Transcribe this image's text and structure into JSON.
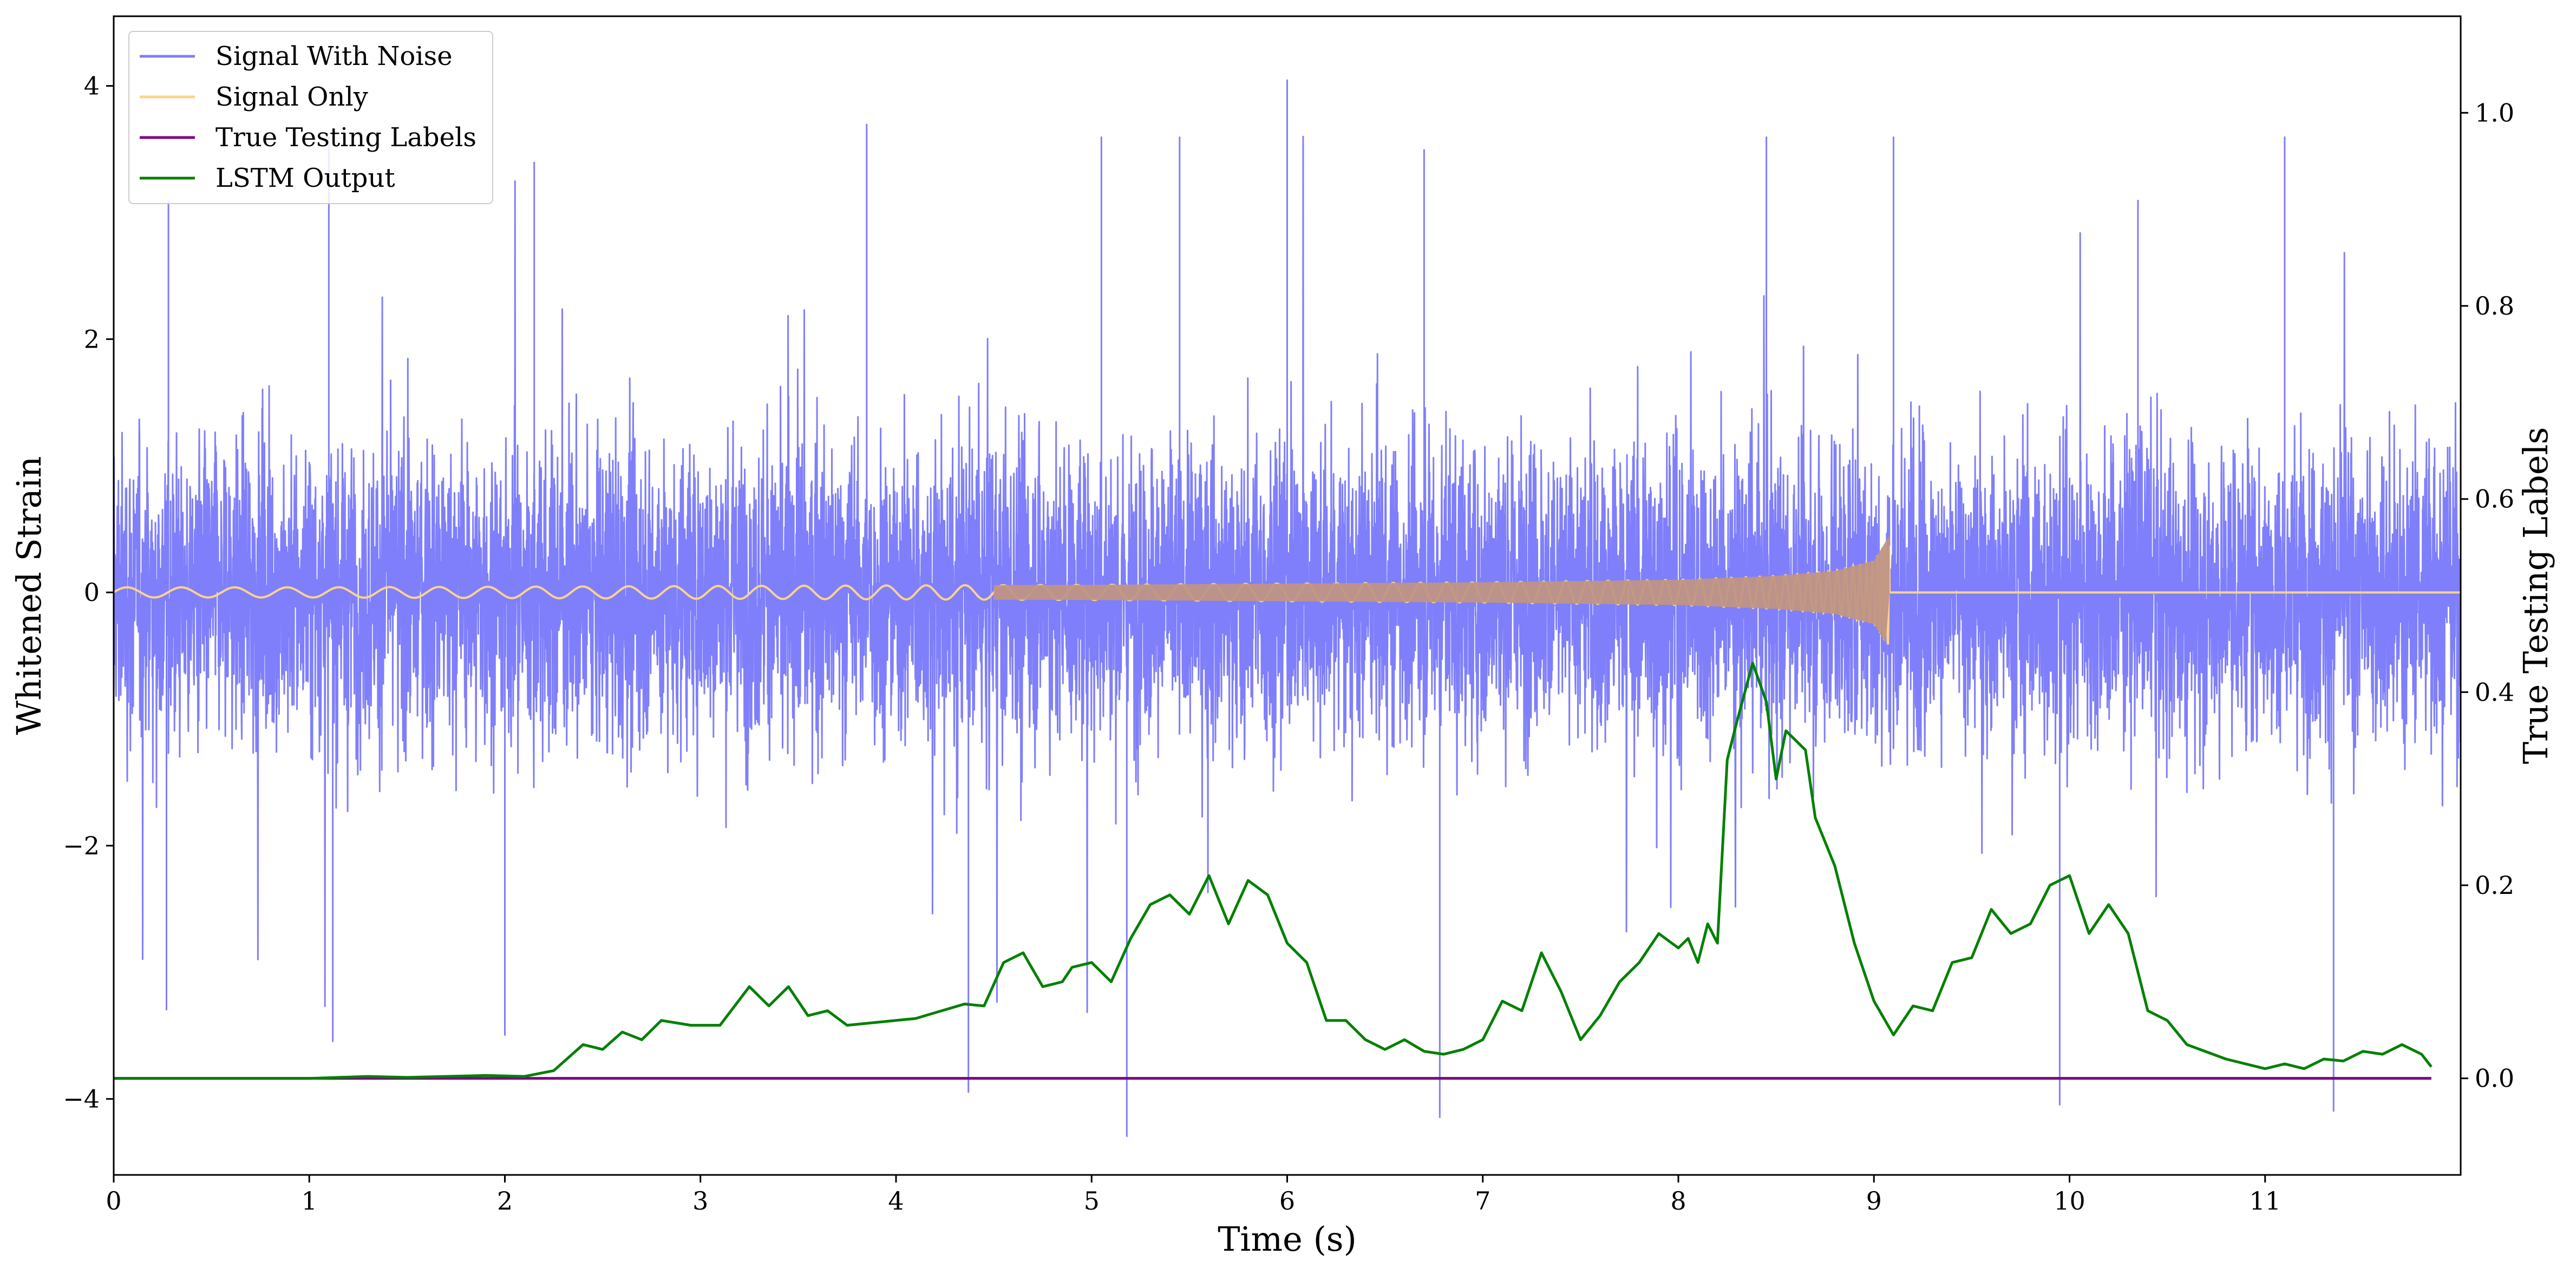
{
  "chart_data": {
    "type": "line",
    "title": "",
    "xlabel": "Time (s)",
    "ylabel": "Whitened Strain",
    "y2label": "True Testing Labels",
    "xlim": [
      0,
      12
    ],
    "ylim": [
      -4.6,
      4.55
    ],
    "y2lim": [
      -0.1,
      1.1
    ],
    "x_ticks": [
      0,
      1,
      2,
      3,
      4,
      5,
      6,
      7,
      8,
      9,
      10,
      11
    ],
    "x_tick_labels": [
      "0",
      "1",
      "2",
      "3",
      "4",
      "5",
      "6",
      "7",
      "8",
      "9",
      "10",
      "11"
    ],
    "y_ticks": [
      -4,
      -2,
      0,
      2,
      4
    ],
    "y_tick_labels": [
      "−4",
      "−2",
      "0",
      "2",
      "4"
    ],
    "y2_ticks": [
      0.0,
      0.2,
      0.4,
      0.6,
      0.8,
      1.0
    ],
    "y2_tick_labels": [
      "0.0",
      "0.2",
      "0.4",
      "0.6",
      "0.8",
      "1.0"
    ],
    "grid": false,
    "legend_position": "top-left",
    "legend": [
      "Signal With Noise",
      "Signal Only",
      "True Testing Labels",
      "LSTM Output"
    ],
    "colors": {
      "noise": "#7f7ffb",
      "signal": "#fdd38a",
      "signal_overlap": "#c09584",
      "labels": "#800080",
      "lstm": "#008000"
    },
    "series": [
      {
        "name": "Signal With Noise",
        "axis": "left",
        "description": "whitened strain noise, approx Gaussian, envelope about ±1.5 with peaks to about +4.05 and -4.3",
        "envelope": [
          -1.5,
          1.5
        ],
        "peaks": [
          {
            "x": 0.28,
            "y": 3.1
          },
          {
            "x": 1.1,
            "y": 3.6
          },
          {
            "x": 2.15,
            "y": 3.4
          },
          {
            "x": 3.85,
            "y": 3.7
          },
          {
            "x": 5.05,
            "y": 3.6
          },
          {
            "x": 5.45,
            "y": 3.6
          },
          {
            "x": 6.0,
            "y": 4.05
          },
          {
            "x": 6.7,
            "y": 3.5
          },
          {
            "x": 8.45,
            "y": 3.6
          },
          {
            "x": 9.1,
            "y": 3.6
          },
          {
            "x": 10.35,
            "y": 3.1
          },
          {
            "x": 11.1,
            "y": 3.6
          },
          {
            "x": 0.27,
            "y": -3.3
          },
          {
            "x": 1.12,
            "y": -3.55
          },
          {
            "x": 2.0,
            "y": -3.5
          },
          {
            "x": 4.37,
            "y": -3.95
          },
          {
            "x": 5.18,
            "y": -4.3
          },
          {
            "x": 6.78,
            "y": -4.15
          },
          {
            "x": 9.95,
            "y": -4.05
          },
          {
            "x": 11.35,
            "y": -4.1
          }
        ]
      },
      {
        "name": "Signal Only",
        "axis": "left",
        "description": "inspiral chirp growing in amplitude and frequency until merger near 9.08 s, zero afterwards",
        "t": [
          0,
          1,
          2,
          3,
          4,
          5,
          6,
          7,
          8,
          8.5,
          8.8,
          9.0,
          9.08
        ],
        "amplitude": [
          0.04,
          0.04,
          0.045,
          0.05,
          0.055,
          0.06,
          0.07,
          0.08,
          0.1,
          0.13,
          0.17,
          0.25,
          0.45
        ],
        "merger_time": 9.08
      },
      {
        "name": "True Testing Labels",
        "axis": "right",
        "x": [
          0,
          11.85
        ],
        "y": [
          0.0,
          0.0
        ]
      },
      {
        "name": "LSTM Output",
        "axis": "right",
        "x": [
          0,
          1.0,
          1.3,
          1.5,
          1.9,
          2.1,
          2.25,
          2.4,
          2.5,
          2.6,
          2.7,
          2.8,
          2.95,
          3.1,
          3.25,
          3.35,
          3.45,
          3.55,
          3.65,
          3.75,
          3.9,
          4.1,
          4.2,
          4.35,
          4.45,
          4.55,
          4.65,
          4.75,
          4.85,
          4.9,
          5.0,
          5.1,
          5.2,
          5.3,
          5.4,
          5.5,
          5.6,
          5.7,
          5.8,
          5.9,
          6.0,
          6.1,
          6.2,
          6.3,
          6.4,
          6.5,
          6.6,
          6.7,
          6.8,
          6.9,
          7.0,
          7.1,
          7.2,
          7.3,
          7.4,
          7.5,
          7.6,
          7.7,
          7.8,
          7.9,
          8.0,
          8.05,
          8.1,
          8.15,
          8.2,
          8.25,
          8.3,
          8.38,
          8.45,
          8.5,
          8.55,
          8.65,
          8.7,
          8.8,
          8.9,
          9.0,
          9.1,
          9.2,
          9.3,
          9.4,
          9.5,
          9.6,
          9.7,
          9.8,
          9.9,
          10.0,
          10.1,
          10.2,
          10.3,
          10.4,
          10.5,
          10.6,
          10.8,
          11.0,
          11.1,
          11.2,
          11.3,
          11.4,
          11.5,
          11.6,
          11.7,
          11.8,
          11.85
        ],
        "y": [
          0.0,
          0.0,
          0.002,
          0.001,
          0.003,
          0.002,
          0.008,
          0.035,
          0.03,
          0.048,
          0.04,
          0.06,
          0.055,
          0.055,
          0.095,
          0.075,
          0.095,
          0.065,
          0.07,
          0.055,
          0.058,
          0.062,
          0.068,
          0.077,
          0.075,
          0.12,
          0.13,
          0.095,
          0.1,
          0.115,
          0.12,
          0.1,
          0.145,
          0.18,
          0.19,
          0.17,
          0.21,
          0.16,
          0.205,
          0.19,
          0.14,
          0.12,
          0.06,
          0.06,
          0.04,
          0.03,
          0.04,
          0.028,
          0.025,
          0.03,
          0.04,
          0.08,
          0.07,
          0.13,
          0.09,
          0.04,
          0.065,
          0.1,
          0.12,
          0.15,
          0.135,
          0.145,
          0.12,
          0.16,
          0.14,
          0.33,
          0.37,
          0.43,
          0.39,
          0.31,
          0.36,
          0.34,
          0.27,
          0.22,
          0.14,
          0.08,
          0.045,
          0.075,
          0.07,
          0.12,
          0.125,
          0.175,
          0.15,
          0.16,
          0.2,
          0.21,
          0.15,
          0.18,
          0.15,
          0.07,
          0.06,
          0.035,
          0.02,
          0.01,
          0.015,
          0.01,
          0.02,
          0.018,
          0.028,
          0.025,
          0.035,
          0.025,
          0.012
        ]
      }
    ]
  }
}
